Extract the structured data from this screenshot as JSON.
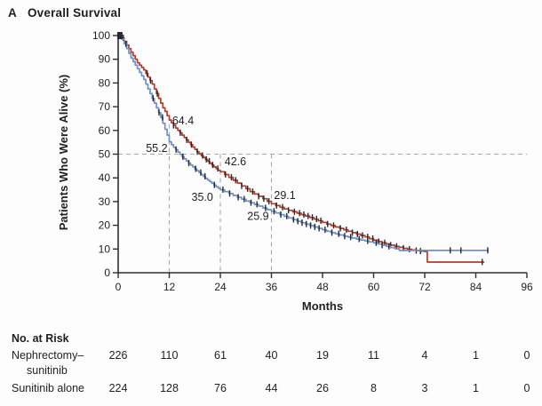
{
  "panel": {
    "label": "A",
    "title": "Overall Survival"
  },
  "colors": {
    "red": "#af3e2c",
    "blue": "#7091c2",
    "censor": "#262833",
    "dash": "#a9a9a9",
    "axis": "#2e2e2e",
    "text": "#1f1f1f"
  },
  "chart_data": {
    "type": "line",
    "subtype": "kaplan-meier-step",
    "title": "Overall Survival",
    "xlabel": "Months",
    "ylabel": "Patients Who Were Alive (%)",
    "xlim": [
      0,
      96
    ],
    "ylim": [
      0,
      100
    ],
    "xticks": [
      0,
      12,
      24,
      36,
      48,
      60,
      72,
      84,
      96
    ],
    "yticks": [
      100,
      90,
      80,
      70,
      60,
      50,
      40,
      30,
      20,
      10,
      0
    ],
    "grid": false,
    "legend_position": "none",
    "start_marker": {
      "month": 0.4,
      "pct": 100
    },
    "reference_lines": {
      "horizontal_pct": 50,
      "verticals": [
        {
          "month": 12,
          "top_pct": 66
        },
        {
          "month": 24,
          "top_pct": 50
        },
        {
          "month": 36,
          "top_pct": 50
        }
      ]
    },
    "annotations": [
      {
        "text": "64.4",
        "month": 12.7,
        "pct": 62.5,
        "anchor": "start"
      },
      {
        "text": "55.2",
        "month": 11.6,
        "pct": 51.0,
        "anchor": "end"
      },
      {
        "text": "42.6",
        "month": 25.0,
        "pct": 45.3,
        "anchor": "start"
      },
      {
        "text": "35.0",
        "month": 22.3,
        "pct": 30.3,
        "anchor": "end"
      },
      {
        "text": "29.1",
        "month": 36.6,
        "pct": 31.0,
        "anchor": "start"
      },
      {
        "text": "25.9",
        "month": 35.4,
        "pct": 22.3,
        "anchor": "end"
      }
    ],
    "series": [
      {
        "name": "Nephrectomy–sunitinib",
        "color": "#af3e2c",
        "milestones": {
          "12": 64.4,
          "24": 42.6,
          "36": 29.1
        },
        "points": [
          [
            0,
            100
          ],
          [
            0.7,
            99
          ],
          [
            1.4,
            97.5
          ],
          [
            2,
            96
          ],
          [
            2.5,
            94.5
          ],
          [
            3,
            93
          ],
          [
            3.5,
            91.5
          ],
          [
            4,
            90
          ],
          [
            4.5,
            88.5
          ],
          [
            5,
            87.5
          ],
          [
            5.5,
            86.5
          ],
          [
            6,
            85.5
          ],
          [
            6.5,
            84
          ],
          [
            7,
            82.5
          ],
          [
            7.5,
            81
          ],
          [
            8,
            79.5
          ],
          [
            8.5,
            77.5
          ],
          [
            9,
            75.5
          ],
          [
            9.5,
            73.5
          ],
          [
            10,
            71.5
          ],
          [
            10.5,
            69.5
          ],
          [
            11,
            68
          ],
          [
            11.5,
            66.2
          ],
          [
            12,
            64.4
          ],
          [
            12.5,
            63.2
          ],
          [
            13,
            62.1
          ],
          [
            13.5,
            61
          ],
          [
            14,
            60
          ],
          [
            14.5,
            59
          ],
          [
            15,
            58
          ],
          [
            15.5,
            57
          ],
          [
            16,
            56
          ],
          [
            16.5,
            55
          ],
          [
            17,
            54
          ],
          [
            17.5,
            53
          ],
          [
            18,
            52
          ],
          [
            18.5,
            51
          ],
          [
            19,
            50.2
          ],
          [
            19.5,
            49.4
          ],
          [
            20,
            48.6
          ],
          [
            20.5,
            47.8
          ],
          [
            21,
            47
          ],
          [
            21.5,
            46.2
          ],
          [
            22,
            45.4
          ],
          [
            22.5,
            44.6
          ],
          [
            23,
            43.9
          ],
          [
            23.5,
            43.2
          ],
          [
            24,
            42.6
          ],
          [
            25,
            41.4
          ],
          [
            26,
            40.2
          ],
          [
            27,
            39
          ],
          [
            28,
            37.8
          ],
          [
            29,
            36.6
          ],
          [
            30,
            35.4
          ],
          [
            31,
            34.2
          ],
          [
            32,
            33.2
          ],
          [
            33,
            32.2
          ],
          [
            34,
            31.2
          ],
          [
            35,
            30.1
          ],
          [
            36,
            29.1
          ],
          [
            37,
            28.3
          ],
          [
            38,
            27.6
          ],
          [
            39,
            26.9
          ],
          [
            40,
            26.3
          ],
          [
            41,
            25.7
          ],
          [
            42,
            25.1
          ],
          [
            43,
            24.5
          ],
          [
            44,
            23.9
          ],
          [
            45,
            23.3
          ],
          [
            46,
            22.6
          ],
          [
            47,
            21.9
          ],
          [
            48,
            21.2
          ],
          [
            49,
            20.5
          ],
          [
            50,
            19.9
          ],
          [
            51,
            19.3
          ],
          [
            52,
            18.7
          ],
          [
            53,
            18.1
          ],
          [
            54,
            17.5
          ],
          [
            55,
            16.9
          ],
          [
            56,
            16.3
          ],
          [
            57,
            15.7
          ],
          [
            58,
            15.1
          ],
          [
            59,
            14.4
          ],
          [
            60,
            13.7
          ],
          [
            61,
            13.1
          ],
          [
            62,
            12.6
          ],
          [
            63,
            12.1
          ],
          [
            64,
            11.6
          ],
          [
            65,
            11.1
          ],
          [
            66,
            10.7
          ],
          [
            67,
            10.3
          ],
          [
            68,
            9.9
          ],
          [
            69,
            9.6
          ],
          [
            70,
            9.3
          ],
          [
            71,
            9.1
          ],
          [
            72,
            8.9
          ],
          [
            72.6,
            4.5
          ],
          [
            86,
            4.5
          ]
        ],
        "censor_months": [
          0.5,
          1.2,
          6.8,
          7.6,
          9.2,
          13,
          14.6,
          16.1,
          17.2,
          18.6,
          19.8,
          20.7,
          21.4,
          22.2,
          23.4,
          25.2,
          26.6,
          27.6,
          29,
          30.4,
          31.6,
          33,
          34.2,
          35.4,
          37.2,
          38.6,
          40,
          41.4,
          42.6,
          43.6,
          44.6,
          45.6,
          46.6,
          47.6,
          49.2,
          50.6,
          52.2,
          53.6,
          55,
          56.2,
          57.4,
          58.6,
          59.8,
          61.2,
          62.6,
          64,
          65.4,
          67,
          68.4,
          70,
          71,
          85.5
        ]
      },
      {
        "name": "Sunitinib alone",
        "color": "#7091c2",
        "milestones": {
          "12": 55.2,
          "24": 35.0,
          "36": 25.9
        },
        "points": [
          [
            0,
            100
          ],
          [
            0.7,
            98.5
          ],
          [
            1.4,
            96.5
          ],
          [
            2,
            94.5
          ],
          [
            2.5,
            92.5
          ],
          [
            3,
            90.5
          ],
          [
            3.5,
            89
          ],
          [
            4,
            87.5
          ],
          [
            4.5,
            86
          ],
          [
            5,
            84.5
          ],
          [
            5.5,
            83
          ],
          [
            6,
            81.5
          ],
          [
            6.5,
            79.5
          ],
          [
            7,
            77.5
          ],
          [
            7.5,
            75.5
          ],
          [
            8,
            73.5
          ],
          [
            8.5,
            71.5
          ],
          [
            9,
            69.5
          ],
          [
            9.5,
            67.5
          ],
          [
            10,
            65.5
          ],
          [
            10.5,
            63
          ],
          [
            11,
            60.5
          ],
          [
            11.5,
            58
          ],
          [
            12,
            55.2
          ],
          [
            12.5,
            54
          ],
          [
            13,
            52.9
          ],
          [
            13.5,
            51.9
          ],
          [
            14,
            50.9
          ],
          [
            14.5,
            49.9
          ],
          [
            15,
            48.9
          ],
          [
            15.5,
            48
          ],
          [
            16,
            47.1
          ],
          [
            16.5,
            46.2
          ],
          [
            17,
            45.4
          ],
          [
            17.5,
            44.6
          ],
          [
            18,
            43.8
          ],
          [
            18.5,
            43
          ],
          [
            19,
            42.2
          ],
          [
            19.5,
            41.4
          ],
          [
            20,
            40.6
          ],
          [
            20.5,
            39.8
          ],
          [
            21,
            39.1
          ],
          [
            21.5,
            38.4
          ],
          [
            22,
            37.7
          ],
          [
            22.5,
            37
          ],
          [
            23,
            36.3
          ],
          [
            23.5,
            35.6
          ],
          [
            24,
            35
          ],
          [
            25,
            34.2
          ],
          [
            26,
            33.4
          ],
          [
            27,
            32.6
          ],
          [
            28,
            31.8
          ],
          [
            29,
            31
          ],
          [
            30,
            30.2
          ],
          [
            31,
            29.5
          ],
          [
            32,
            28.8
          ],
          [
            33,
            28.1
          ],
          [
            34,
            27.3
          ],
          [
            35,
            26.6
          ],
          [
            36,
            25.9
          ],
          [
            37,
            25.2
          ],
          [
            38,
            24.5
          ],
          [
            39,
            23.8
          ],
          [
            40,
            23.1
          ],
          [
            41,
            22.4
          ],
          [
            42,
            21.7
          ],
          [
            43,
            21.1
          ],
          [
            44,
            20.5
          ],
          [
            45,
            19.9
          ],
          [
            46,
            19.3
          ],
          [
            47,
            18.7
          ],
          [
            48,
            18.1
          ],
          [
            49,
            17.5
          ],
          [
            50,
            16.9
          ],
          [
            51,
            16.4
          ],
          [
            52,
            15.9
          ],
          [
            53,
            15.4
          ],
          [
            54,
            15
          ],
          [
            55,
            14.6
          ],
          [
            56,
            14.2
          ],
          [
            57,
            13.8
          ],
          [
            58,
            13.4
          ],
          [
            59,
            13
          ],
          [
            60,
            12.6
          ],
          [
            61,
            12.1
          ],
          [
            62,
            11.6
          ],
          [
            63,
            11.1
          ],
          [
            64,
            10.6
          ],
          [
            65,
            10.1
          ],
          [
            66,
            9.4
          ],
          [
            87,
            9.4
          ]
        ],
        "censor_months": [
          1.8,
          8.2,
          9.6,
          10.4,
          13.6,
          15.2,
          16.6,
          18.2,
          19.4,
          20.4,
          22.6,
          24.6,
          26.2,
          28.2,
          29.6,
          31.2,
          32.6,
          34.6,
          36.6,
          38.2,
          39.6,
          41.2,
          42.2,
          43.2,
          44.2,
          45.2,
          46.2,
          47.2,
          48.6,
          50.2,
          51.8,
          53.2,
          54.6,
          56.6,
          58.6,
          60.6,
          62,
          63.6,
          78,
          80.5,
          86.8
        ]
      }
    ]
  },
  "risk_table": {
    "header": "No. at Risk",
    "rows": [
      {
        "label_lines": [
          "Nephrectomy–",
          "sunitinib"
        ],
        "values": [
          "226",
          "110",
          "61",
          "40",
          "19",
          "11",
          "4",
          "1",
          "0"
        ]
      },
      {
        "label_lines": [
          "Sunitinib alone"
        ],
        "values": [
          "224",
          "128",
          "76",
          "44",
          "26",
          "8",
          "3",
          "1",
          "0"
        ]
      }
    ]
  }
}
